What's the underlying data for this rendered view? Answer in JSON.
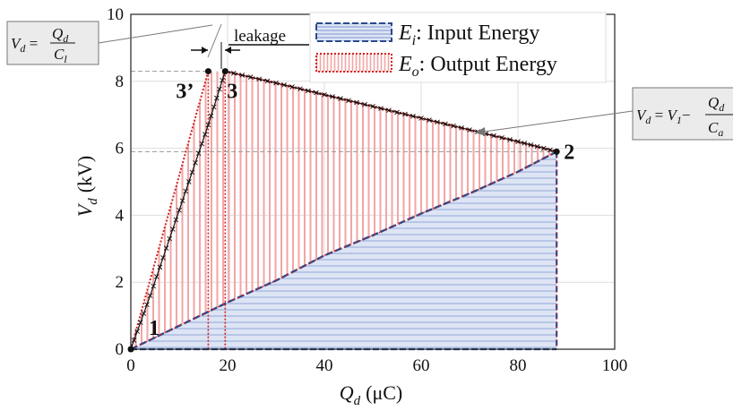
{
  "chart_data": {
    "type": "line",
    "xlabel_symbol": "Q",
    "xlabel_sub": "d",
    "xlabel_unit": "(μC)",
    "ylabel_symbol": "V",
    "ylabel_sub": "d",
    "ylabel_unit": "(kV)",
    "xlim": [
      0,
      100
    ],
    "ylim": [
      0,
      10
    ],
    "xticks": [
      "0",
      "20",
      "40",
      "60",
      "80",
      "100"
    ],
    "yticks": [
      "0",
      "2",
      "4",
      "6",
      "8",
      "10"
    ],
    "grid": true,
    "legend_position": "top-center",
    "legend": [
      {
        "symbol": "E",
        "sub": "i",
        "text": ": Input Energy",
        "style": "blue-dashed-horizontal-hatch"
      },
      {
        "symbol": "E",
        "sub": "o",
        "text": ": Output Energy",
        "style": "red-dotted-vertical-hatch"
      }
    ],
    "points": [
      {
        "label": "1",
        "x": 0,
        "y": 0
      },
      {
        "label": "2",
        "x": 88,
        "y": 5.9
      },
      {
        "label": "3",
        "x": 19.5,
        "y": 8.3
      },
      {
        "label": "3’",
        "x": 16,
        "y": 8.3
      }
    ],
    "series": [
      {
        "name": "E_i: Input Energy",
        "color": "#2b4a8c",
        "x": [
          0,
          10,
          20,
          30,
          40,
          50,
          60,
          70,
          80,
          88
        ],
        "y": [
          0,
          0.7,
          1.4,
          2.05,
          2.8,
          3.4,
          4.05,
          4.65,
          5.3,
          5.9
        ]
      },
      {
        "name": "charge path 1 to 3",
        "color": "#111111",
        "x": [
          0,
          4,
          8,
          12,
          16,
          19.5
        ],
        "y": [
          0,
          1.6,
          3.3,
          5.0,
          6.7,
          8.3
        ]
      },
      {
        "name": "discharge path 3 to 2",
        "color": "#111111",
        "x": [
          19.5,
          30,
          40,
          50,
          60,
          70,
          80,
          88
        ],
        "y": [
          8.3,
          7.95,
          7.6,
          7.25,
          6.9,
          6.55,
          6.2,
          5.9
        ]
      },
      {
        "name": "E_o boundary 1 to 3’",
        "color": "#d42020",
        "x": [
          0,
          16
        ],
        "y": [
          0,
          8.3
        ]
      }
    ],
    "annotations": [
      {
        "text": "leakage"
      },
      {
        "formula": "V_d = Q_d / C_l",
        "lhs": "V",
        "lhs_sub": "d",
        "num": "Q",
        "num_sub": "d",
        "den": "C",
        "den_sub": "l"
      },
      {
        "formula": "V_d = V_1 − Q_d / C_a",
        "lhs": "V",
        "lhs_sub": "d",
        "mid": "V",
        "mid_sub": "1",
        "num": "Q",
        "num_sub": "d",
        "den": "C",
        "den_sub": "a"
      }
    ]
  },
  "colors": {
    "input": "#2b4a8c",
    "input_fill": "#dbe3f5",
    "output": "#d42020",
    "output_hatch": "#f2a6a6",
    "grid": "#dddddd"
  }
}
